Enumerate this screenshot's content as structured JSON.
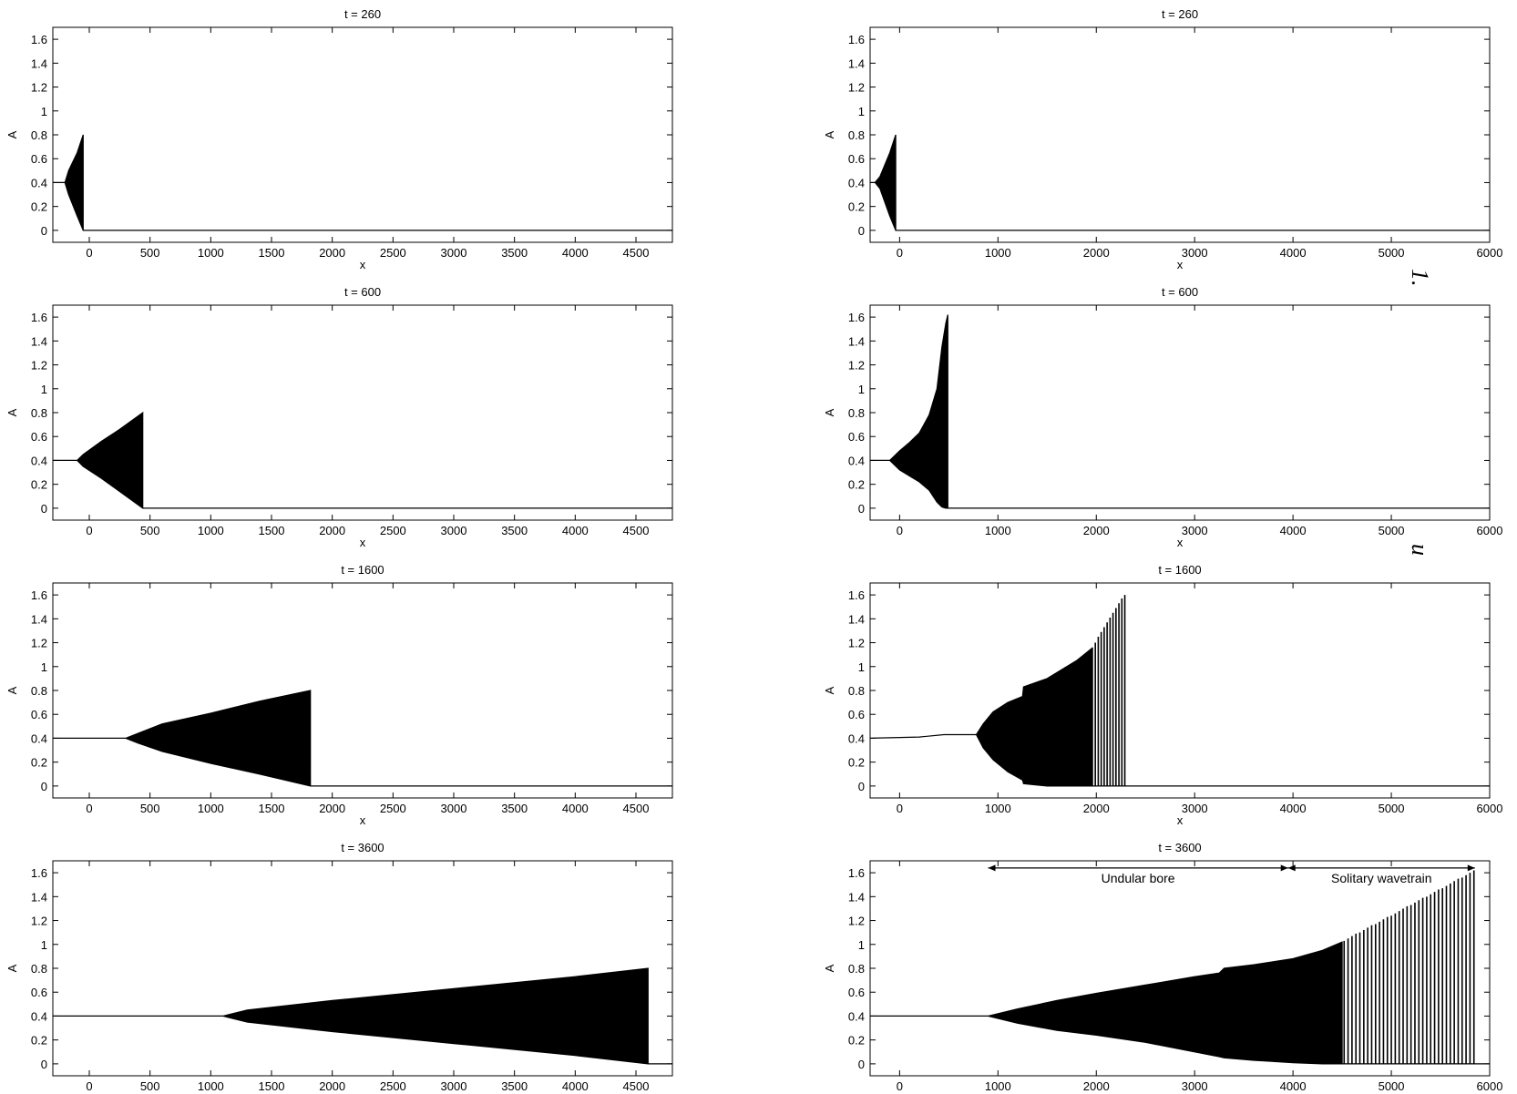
{
  "side_marks": [
    "1.",
    "u"
  ],
  "chart_data": [
    {
      "type": "area",
      "title": "t = 260",
      "xlabel": "x",
      "ylabel": "A",
      "xlim": [
        -300,
        4800
      ],
      "ylim": [
        -0.1,
        1.7
      ],
      "xticks": [
        0,
        500,
        1000,
        1500,
        2000,
        2500,
        3000,
        3500,
        4000,
        4500
      ],
      "yticks": [
        0,
        0.2,
        0.4,
        0.6,
        0.8,
        1,
        1.2,
        1.4,
        1.6
      ],
      "series": [
        {
          "kind": "envelope",
          "x": [
            -300,
            -200,
            -170,
            -100,
            -50,
            -50,
            4800
          ],
          "upper": [
            0.4,
            0.4,
            0.5,
            0.65,
            0.8,
            0,
            0
          ],
          "lower": [
            0.4,
            0.4,
            0.3,
            0.12,
            0,
            0,
            0
          ]
        }
      ],
      "annotations": []
    },
    {
      "type": "area",
      "title": "t = 260",
      "xlabel": "x",
      "ylabel": "A",
      "xlim": [
        -300,
        6000
      ],
      "ylim": [
        -0.1,
        1.7
      ],
      "xticks": [
        0,
        1000,
        2000,
        3000,
        4000,
        5000,
        6000
      ],
      "yticks": [
        0,
        0.2,
        0.4,
        0.6,
        0.8,
        1,
        1.2,
        1.4,
        1.6
      ],
      "series": [
        {
          "kind": "envelope",
          "x": [
            -300,
            -250,
            -200,
            -100,
            -40,
            -40,
            6000
          ],
          "upper": [
            0.4,
            0.4,
            0.45,
            0.65,
            0.8,
            0,
            0
          ],
          "lower": [
            0.4,
            0.4,
            0.35,
            0.12,
            0,
            0,
            0
          ]
        }
      ],
      "annotations": []
    },
    {
      "type": "area",
      "title": "t = 600",
      "xlabel": "x",
      "ylabel": "A",
      "xlim": [
        -300,
        4800
      ],
      "ylim": [
        -0.1,
        1.7
      ],
      "xticks": [
        0,
        500,
        1000,
        1500,
        2000,
        2500,
        3000,
        3500,
        4000,
        4500
      ],
      "yticks": [
        0,
        0.2,
        0.4,
        0.6,
        0.8,
        1,
        1.2,
        1.4,
        1.6
      ],
      "series": [
        {
          "kind": "envelope",
          "x": [
            -300,
            -100,
            -50,
            100,
            250,
            440,
            440,
            4800
          ],
          "upper": [
            0.4,
            0.4,
            0.45,
            0.56,
            0.66,
            0.8,
            0,
            0
          ],
          "lower": [
            0.4,
            0.4,
            0.35,
            0.25,
            0.14,
            0,
            0,
            0
          ]
        }
      ],
      "annotations": []
    },
    {
      "type": "area",
      "title": "t = 600",
      "xlabel": "x",
      "ylabel": "A",
      "xlim": [
        -300,
        6000
      ],
      "ylim": [
        -0.1,
        1.7
      ],
      "xticks": [
        0,
        1000,
        2000,
        3000,
        4000,
        5000,
        6000
      ],
      "yticks": [
        0,
        0.2,
        0.4,
        0.6,
        0.8,
        1,
        1.2,
        1.4,
        1.6
      ],
      "series": [
        {
          "kind": "envelope",
          "x": [
            -300,
            -100,
            0,
            100,
            200,
            300,
            380,
            430,
            470,
            490,
            490,
            6000
          ],
          "upper": [
            0.4,
            0.4,
            0.48,
            0.55,
            0.63,
            0.78,
            1.0,
            1.35,
            1.55,
            1.62,
            0,
            0
          ],
          "lower": [
            0.4,
            0.4,
            0.32,
            0.27,
            0.22,
            0.15,
            0.05,
            0.01,
            0,
            0,
            0,
            0
          ]
        }
      ],
      "annotations": []
    },
    {
      "type": "area",
      "title": "t = 1600",
      "xlabel": "x",
      "ylabel": "A",
      "xlim": [
        -300,
        4800
      ],
      "ylim": [
        -0.1,
        1.7
      ],
      "xticks": [
        0,
        500,
        1000,
        1500,
        2000,
        2500,
        3000,
        3500,
        4000,
        4500
      ],
      "yticks": [
        0,
        0.2,
        0.4,
        0.6,
        0.8,
        1,
        1.2,
        1.4,
        1.6
      ],
      "series": [
        {
          "kind": "envelope",
          "x": [
            -300,
            300,
            400,
            600,
            1000,
            1400,
            1820,
            1820,
            4800
          ],
          "upper": [
            0.4,
            0.4,
            0.44,
            0.52,
            0.61,
            0.71,
            0.8,
            0,
            0
          ],
          "lower": [
            0.4,
            0.4,
            0.36,
            0.29,
            0.19,
            0.1,
            0,
            0,
            0
          ]
        }
      ],
      "annotations": []
    },
    {
      "type": "area",
      "title": "t = 1600",
      "xlabel": "x",
      "ylabel": "A",
      "xlim": [
        -300,
        6000
      ],
      "ylim": [
        -0.1,
        1.7
      ],
      "xticks": [
        0,
        1000,
        2000,
        3000,
        4000,
        5000,
        6000
      ],
      "yticks": [
        0,
        0.2,
        0.4,
        0.6,
        0.8,
        1,
        1.2,
        1.4,
        1.6
      ],
      "series": [
        {
          "kind": "envelope",
          "x": [
            -300,
            200,
            450,
            780,
            850,
            950,
            1100,
            1250,
            1260,
            1500,
            1800,
            1950,
            1950,
            6000
          ],
          "upper": [
            0.4,
            0.41,
            0.43,
            0.43,
            0.52,
            0.62,
            0.7,
            0.75,
            0.83,
            0.9,
            1.05,
            1.15,
            0,
            0
          ],
          "lower": [
            0.4,
            0.41,
            0.43,
            0.43,
            0.32,
            0.22,
            0.12,
            0.05,
            0.02,
            0,
            0,
            0,
            0,
            0
          ]
        },
        {
          "kind": "spikes",
          "x": [
            1960,
            1990,
            2020,
            2050,
            2080,
            2110,
            2140,
            2170,
            2200,
            2230,
            2260,
            2290
          ],
          "values": [
            1.16,
            1.2,
            1.25,
            1.29,
            1.33,
            1.37,
            1.41,
            1.45,
            1.49,
            1.53,
            1.57,
            1.6
          ]
        }
      ],
      "annotations": []
    },
    {
      "type": "area",
      "title": "t = 3600",
      "xlabel": "x",
      "ylabel": "A",
      "xlim": [
        -300,
        4800
      ],
      "ylim": [
        -0.1,
        1.7
      ],
      "xticks": [
        0,
        500,
        1000,
        1500,
        2000,
        2500,
        3000,
        3500,
        4000,
        4500
      ],
      "yticks": [
        0,
        0.2,
        0.4,
        0.6,
        0.8,
        1,
        1.2,
        1.4,
        1.6
      ],
      "series": [
        {
          "kind": "envelope",
          "x": [
            -300,
            1100,
            1300,
            2000,
            3000,
            4000,
            4600,
            4600,
            4800
          ],
          "upper": [
            0.4,
            0.4,
            0.45,
            0.53,
            0.63,
            0.73,
            0.8,
            0,
            0
          ],
          "lower": [
            0.4,
            0.4,
            0.35,
            0.27,
            0.17,
            0.07,
            0,
            0,
            0
          ]
        }
      ],
      "annotations": []
    },
    {
      "type": "area",
      "title": "t = 3600",
      "xlabel": "x",
      "ylabel": "A",
      "xlim": [
        -300,
        6000
      ],
      "ylim": [
        -0.1,
        1.7
      ],
      "xticks": [
        0,
        1000,
        2000,
        3000,
        4000,
        5000,
        6000
      ],
      "yticks": [
        0,
        0.2,
        0.4,
        0.6,
        0.8,
        1,
        1.2,
        1.4,
        1.6
      ],
      "series": [
        {
          "kind": "envelope",
          "x": [
            -300,
            900,
            1200,
            1600,
            2000,
            2500,
            3000,
            3250,
            3300,
            3600,
            4000,
            4300,
            4500,
            4500,
            6000
          ],
          "upper": [
            0.4,
            0.4,
            0.46,
            0.53,
            0.59,
            0.66,
            0.73,
            0.76,
            0.8,
            0.83,
            0.88,
            0.95,
            1.02,
            0,
            0
          ],
          "lower": [
            0.4,
            0.4,
            0.34,
            0.28,
            0.24,
            0.18,
            0.1,
            0.06,
            0.05,
            0.03,
            0.01,
            0,
            0,
            0,
            0
          ]
        },
        {
          "kind": "spikes",
          "x": [
            4520,
            4560,
            4600,
            4640,
            4680,
            4720,
            4760,
            4800,
            4840,
            4880,
            4920,
            4960,
            5000,
            5040,
            5080,
            5120,
            5160,
            5200,
            5240,
            5280,
            5320,
            5360,
            5400,
            5440,
            5480,
            5520,
            5560,
            5600,
            5640,
            5680,
            5720,
            5760,
            5800,
            5840
          ],
          "values": [
            1.03,
            1.05,
            1.07,
            1.09,
            1.1,
            1.12,
            1.14,
            1.16,
            1.17,
            1.19,
            1.21,
            1.23,
            1.24,
            1.26,
            1.28,
            1.3,
            1.32,
            1.33,
            1.35,
            1.37,
            1.39,
            1.4,
            1.42,
            1.44,
            1.46,
            1.47,
            1.49,
            1.51,
            1.53,
            1.55,
            1.56,
            1.58,
            1.6,
            1.62
          ]
        }
      ],
      "annotations": [
        {
          "type": "arrow",
          "x1": 900,
          "x2": 3950,
          "y": 1.64,
          "label": "Undular   bore"
        },
        {
          "type": "arrow",
          "x1": 3950,
          "x2": 5850,
          "y": 1.64,
          "label": "Solitary wavetrain"
        }
      ]
    }
  ]
}
